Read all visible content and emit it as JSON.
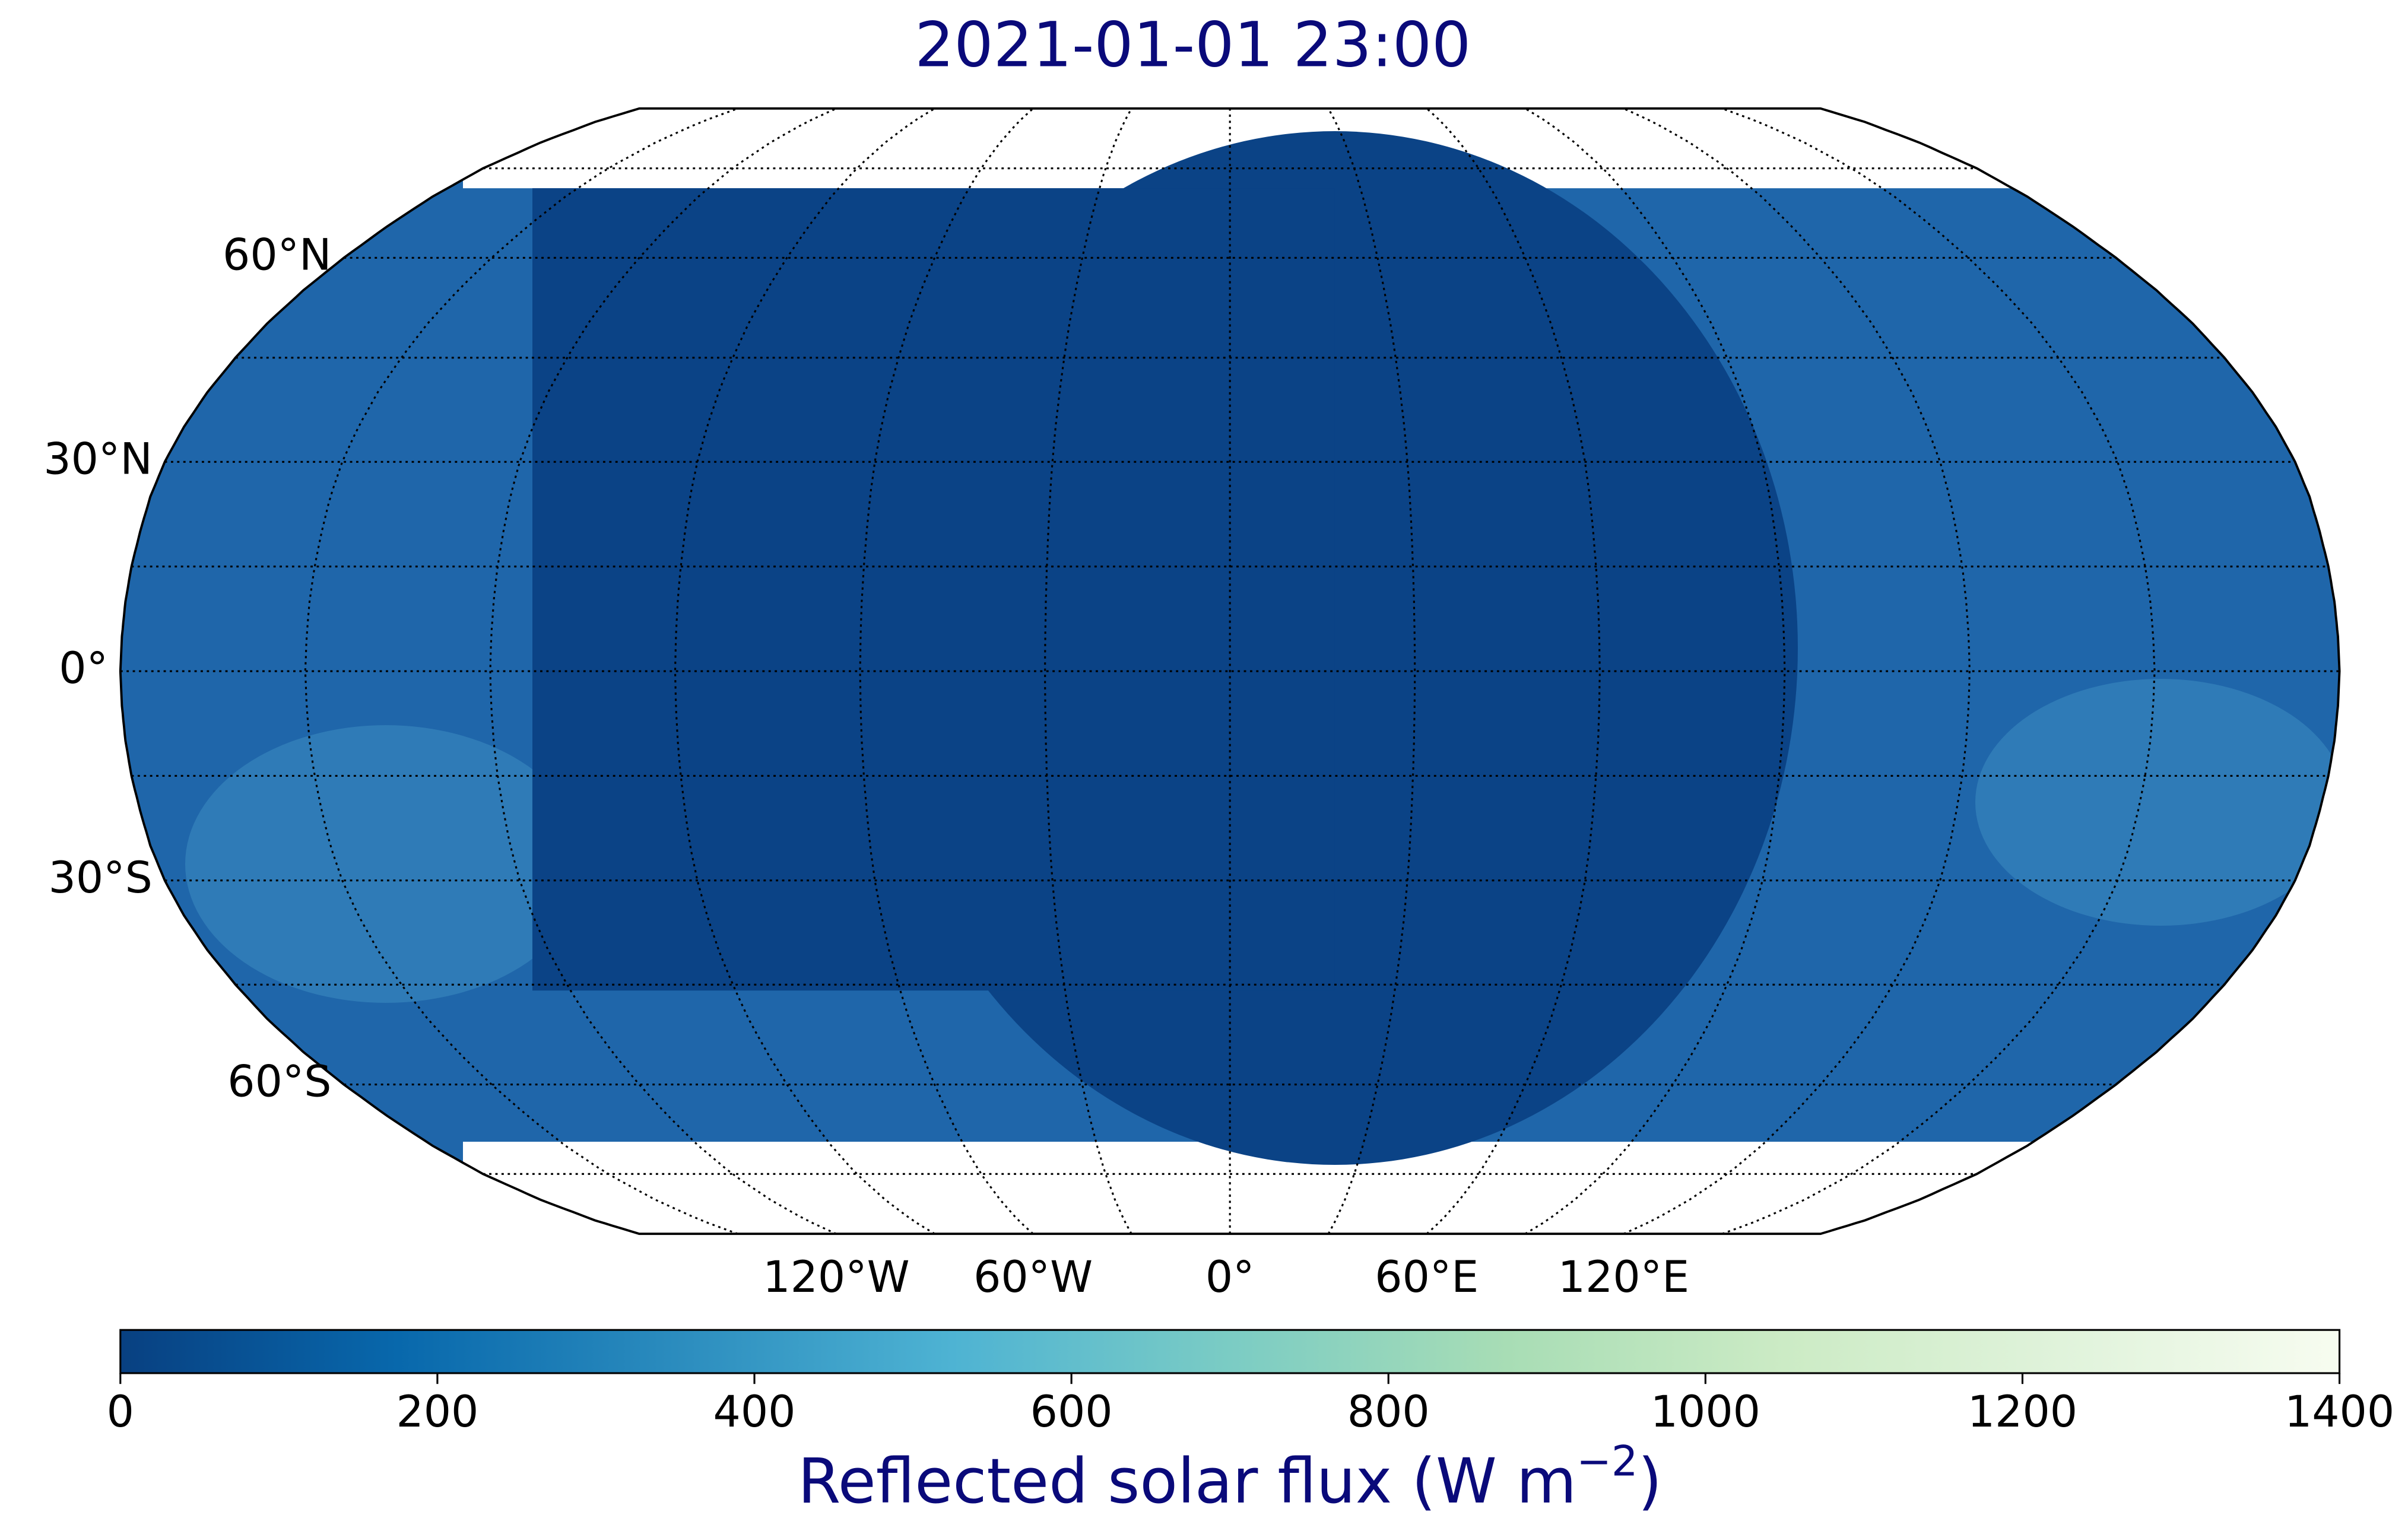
{
  "map": {
    "title": "2021-01-01 23:00",
    "projection": "robinson",
    "parallels": [
      -75,
      -60,
      -45,
      -30,
      -15,
      0,
      15,
      30,
      45,
      60,
      75
    ],
    "meridians": [
      -150,
      -120,
      -90,
      -60,
      -30,
      0,
      30,
      60,
      90,
      120,
      150
    ],
    "lat_labels": [
      {
        "value": 60,
        "label": "60°N"
      },
      {
        "value": 30,
        "label": "30°N"
      },
      {
        "value": 0,
        "label": "0°"
      },
      {
        "value": -30,
        "label": "30°S"
      },
      {
        "value": -60,
        "label": "60°S"
      }
    ],
    "lon_labels": [
      {
        "value": -120,
        "label": "120°W"
      },
      {
        "value": -60,
        "label": "60°W"
      },
      {
        "value": 0,
        "label": "0°"
      },
      {
        "value": 60,
        "label": "60°E"
      },
      {
        "value": 120,
        "label": "120°E"
      }
    ],
    "colorbar": {
      "lim": [
        0,
        1400
      ],
      "ticks": [
        0,
        200,
        400,
        600,
        800,
        1000,
        1200,
        1400
      ],
      "label": "Reflected solar flux (W m",
      "label_exponent": "−2",
      "label_end": ")",
      "colormap": [
        "#084081",
        "#0868ac",
        "#2b8cbe",
        "#4eb3d3",
        "#7bccc4",
        "#a8ddb5",
        "#ccebc5",
        "#e0f3db",
        "#f7fcf0"
      ]
    }
  }
}
